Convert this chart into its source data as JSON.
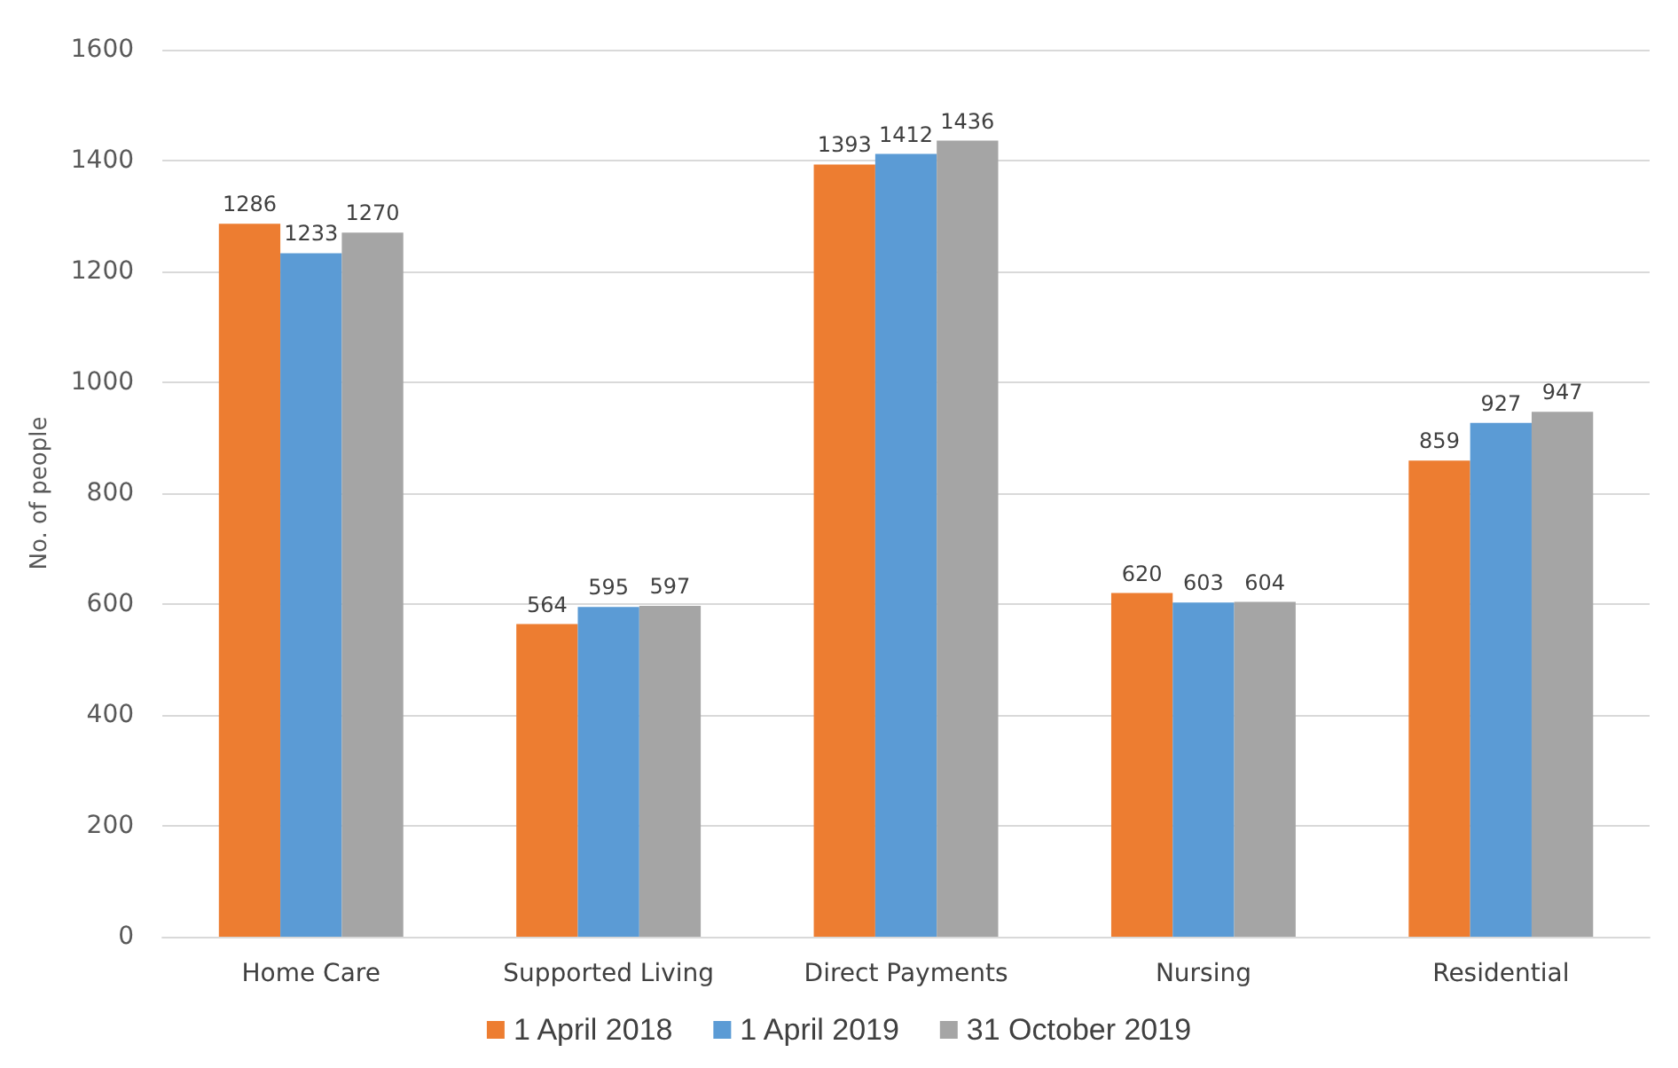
{
  "chart_data": {
    "type": "bar",
    "ylabel": "No. of people",
    "categories": [
      "Home Care",
      "Supported Living",
      "Direct Payments",
      "Nursing",
      "Residential"
    ],
    "series": [
      {
        "name": "1 April 2018",
        "color": "#ed7d31",
        "values": [
          1286,
          564,
          1393,
          620,
          859
        ]
      },
      {
        "name": "1 April 2019",
        "color": "#5b9bd5",
        "values": [
          1233,
          595,
          1412,
          603,
          927
        ]
      },
      {
        "name": "31 October 2019",
        "color": "#a5a5a5",
        "values": [
          1270,
          597,
          1436,
          604,
          947
        ]
      }
    ],
    "ylim": [
      0,
      1600
    ],
    "yticks": [
      0,
      200,
      400,
      600,
      800,
      1000,
      1200,
      1400,
      1600
    ],
    "grid": "y",
    "legend": "bottom",
    "data_labels": true
  }
}
